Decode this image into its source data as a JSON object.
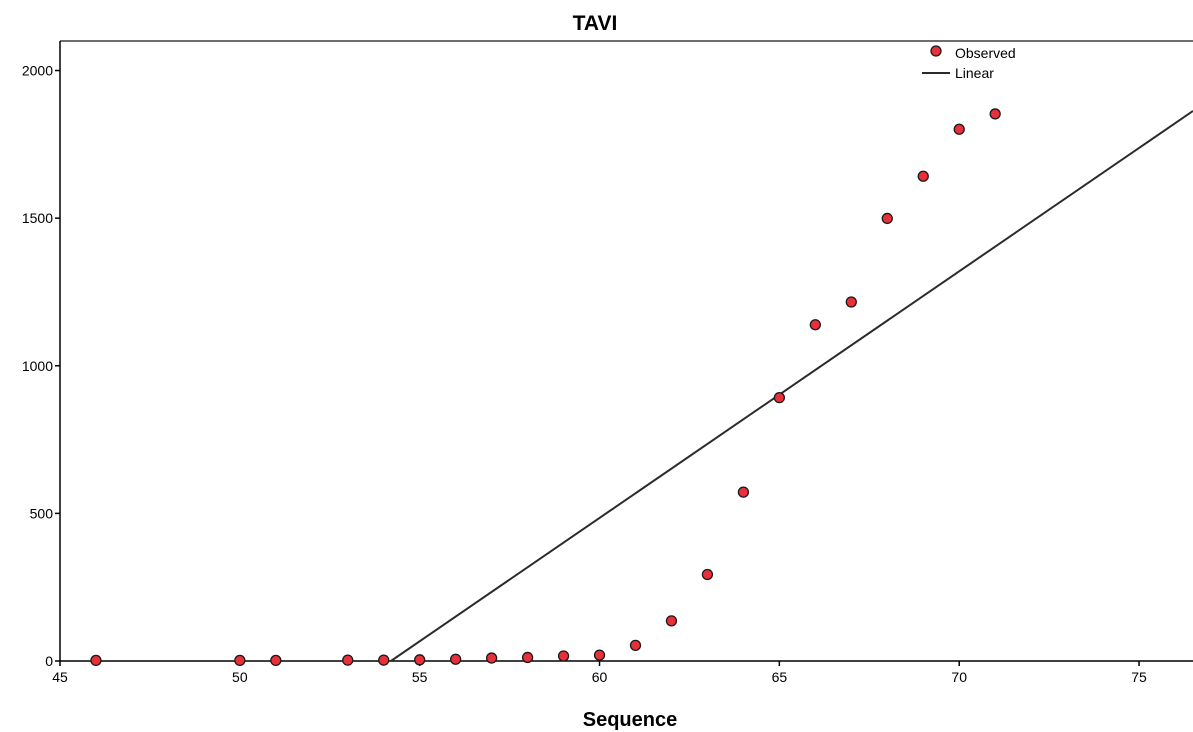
{
  "chart_data": {
    "type": "scatter",
    "title": "TAVI",
    "xlabel": "Sequence",
    "ylabel": "",
    "xlim": [
      45,
      76.5
    ],
    "ylim": [
      0,
      2100
    ],
    "x_ticks": [
      45,
      50,
      55,
      60,
      65,
      70,
      75
    ],
    "y_ticks": [
      0,
      500,
      1000,
      1500,
      2000
    ],
    "grid": false,
    "legend_position": "top-right",
    "colors": {
      "observed_fill": "#e8303a",
      "observed_edge": "#1a1a1a",
      "line": "#2b2b2b",
      "frame": "#6e6e6e"
    },
    "series": [
      {
        "name": "Observed",
        "kind": "points",
        "x": [
          46,
          50,
          51,
          53,
          54,
          55,
          56,
          57,
          58,
          59,
          60,
          61,
          62,
          63,
          64,
          65,
          66,
          67,
          68,
          69,
          70,
          71
        ],
        "y": [
          2,
          2,
          2,
          3,
          3,
          4,
          6,
          10,
          12,
          17,
          20,
          53,
          136,
          293,
          572,
          892,
          1139,
          1216,
          1499,
          1642,
          1801,
          1853
        ]
      },
      {
        "name": "Linear",
        "kind": "line",
        "x": [
          54.2,
          76.5
        ],
        "y": [
          0,
          1863
        ]
      }
    ]
  }
}
